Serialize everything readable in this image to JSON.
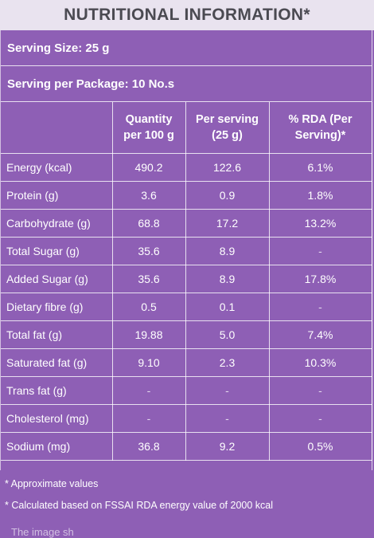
{
  "title": "NUTRITIONAL INFORMATION*",
  "serving_size": "Serving Size: 25 g",
  "serving_per_package": "Serving per Package: 10 No.s",
  "table": {
    "headers": [
      "",
      "Quantity\nper 100 g",
      "Per serving\n(25 g)",
      "% RDA (Per\nServing)*"
    ],
    "rows": [
      {
        "label": "Energy (kcal)",
        "per100": "490.2",
        "serving": "122.6",
        "rda": "6.1%"
      },
      {
        "label": "Protein (g)",
        "per100": "3.6",
        "serving": "0.9",
        "rda": "1.8%"
      },
      {
        "label": "Carbohydrate (g)",
        "per100": "68.8",
        "serving": "17.2",
        "rda": "13.2%"
      },
      {
        "label": "Total Sugar (g)",
        "per100": "35.6",
        "serving": "8.9",
        "rda": "-"
      },
      {
        "label": "Added Sugar (g)",
        "per100": "35.6",
        "serving": "8.9",
        "rda": "17.8%"
      },
      {
        "label": "Dietary fibre (g)",
        "per100": "0.5",
        "serving": "0.1",
        "rda": "-"
      },
      {
        "label": "Total fat (g)",
        "per100": "19.88",
        "serving": "5.0",
        "rda": "7.4%"
      },
      {
        "label": "Saturated fat (g)",
        "per100": "9.10",
        "serving": "2.3",
        "rda": "10.3%"
      },
      {
        "label": "Trans fat (g)",
        "per100": "-",
        "serving": "-",
        "rda": "-"
      },
      {
        "label": "Cholesterol (mg)",
        "per100": "-",
        "serving": "-",
        "rda": "-"
      },
      {
        "label": "Sodium (mg)",
        "per100": "36.8",
        "serving": "9.2",
        "rda": "0.5%"
      }
    ]
  },
  "footnotes": [
    "* Approximate values",
    "* Calculated based on FSSAI RDA energy value of 2000 kcal"
  ],
  "trailing_text": "The image sh",
  "colors": {
    "panel": "#8e5fb5",
    "title_bar": "#e9e3ef",
    "title_text": "#4b4a52"
  }
}
